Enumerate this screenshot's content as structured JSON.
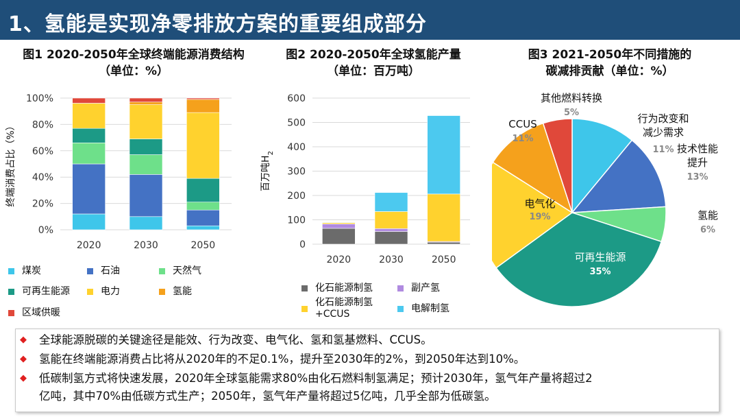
{
  "header": {
    "title": "1、氢能是实现净零排放方案的重要组成部分"
  },
  "chart1": {
    "title_line1": "图1 2020-2050年全球终端能源消费结构",
    "title_line2": "（单位：%）"
  },
  "chart2": {
    "title_line1": "图2 2020-2050年全球氢能产量",
    "title_line2": "（单位：百万吨）"
  },
  "chart3": {
    "title_line1": "图3 2021-2050年不同措施的",
    "title_line2": "碳减排贡献（单位：%）"
  },
  "chart_data": [
    {
      "type": "bar",
      "stacked": true,
      "categories": [
        "2020",
        "2030",
        "2050"
      ],
      "ylabel": "终端消费占比（%）",
      "ylim": [
        0,
        100
      ],
      "yticks": [
        "0%",
        "20%",
        "40%",
        "60%",
        "80%",
        "100%"
      ],
      "legend": "bottom",
      "series": [
        {
          "name": "煤炭",
          "color": "#3ec6ea",
          "values": [
            12,
            10,
            3
          ]
        },
        {
          "name": "石油",
          "color": "#4472c4",
          "values": [
            38,
            32,
            12
          ]
        },
        {
          "name": "天然气",
          "color": "#6ee08a",
          "values": [
            16,
            15,
            6
          ]
        },
        {
          "name": "可再生能源",
          "color": "#1c9a86",
          "values": [
            11,
            12,
            18
          ]
        },
        {
          "name": "电力",
          "color": "#ffd22e",
          "values": [
            19,
            26,
            50
          ]
        },
        {
          "name": "氢能",
          "color": "#f5a11c",
          "values": [
            0.1,
            2,
            10
          ]
        },
        {
          "name": "区域供暖",
          "color": "#e0483a",
          "values": [
            3.9,
            3,
            1
          ]
        }
      ]
    },
    {
      "type": "bar",
      "stacked": true,
      "categories": [
        "2020",
        "2030",
        "2050"
      ],
      "ylabel": "百万吨H2",
      "ylim": [
        0,
        600
      ],
      "yticks": [
        "0",
        "100",
        "200",
        "300",
        "400",
        "500",
        "600"
      ],
      "legend": "bottom",
      "series": [
        {
          "name": "化石能源制氢",
          "color": "#6b6b6b",
          "values": [
            65,
            52,
            8
          ]
        },
        {
          "name": "副产氢",
          "color": "#b08be0",
          "values": [
            18,
            12,
            3
          ]
        },
        {
          "name": "化石能源制氢+CCUS",
          "color": "#ffd22e",
          "values": [
            5,
            70,
            195
          ]
        },
        {
          "name": "电解制氢",
          "color": "#4cc9ef",
          "values": [
            2,
            78,
            322
          ]
        }
      ]
    },
    {
      "type": "pie",
      "slices": [
        {
          "label": "行为改变和减少需求",
          "value": 11,
          "pct": "11%",
          "color": "#3ec6ea"
        },
        {
          "label": "技术性能提升",
          "value": 13,
          "pct": "13%",
          "color": "#4472c4"
        },
        {
          "label": "氢能",
          "value": 6,
          "pct": "6%",
          "color": "#6ee08a"
        },
        {
          "label": "可再生能源",
          "value": 35,
          "pct": "35%",
          "color": "#1c9a86"
        },
        {
          "label": "电气化",
          "value": 19,
          "pct": "19%",
          "color": "#ffd22e"
        },
        {
          "label": "CCUS",
          "value": 11,
          "pct": "11%",
          "color": "#f5a11c"
        },
        {
          "label": "其他燃料转换",
          "value": 5,
          "pct": "5%",
          "color": "#e0483a"
        }
      ]
    }
  ],
  "notes": {
    "items": [
      "全球能源脱碳的关键途径是能效、行为改变、电气化、氢和氢基燃料、CCUS。",
      "氢能在终端能源消费占比将从2020年的不足0.1%，提升至2030年的2%，到2050年达到10%。",
      "低碳制氢方式将快速发展，2020年全球氢能需求80%由化石燃料制氢满足；预计2030年，氢气年产量将超过2",
      "亿吨，其中70%由低碳方式生产；2050年，氢气年产量将超过5亿吨，几乎全部为低碳氢。"
    ]
  }
}
